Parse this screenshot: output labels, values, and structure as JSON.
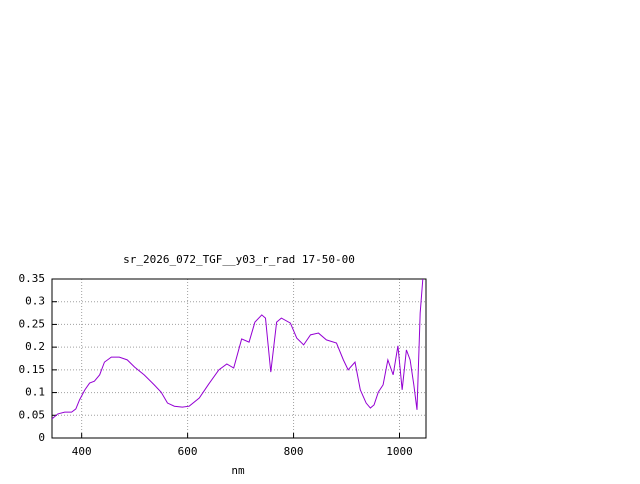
{
  "chart_data": {
    "type": "line",
    "title": "sr_2026_072_TGF__y03_r_rad 17-50-00",
    "xlabel": "nm",
    "xlim": [
      344,
      1050
    ],
    "ylim": [
      0,
      0.35
    ],
    "xticks": [
      400,
      600,
      800,
      1000
    ],
    "yticks": [
      0,
      0.05,
      0.1,
      0.15,
      0.2,
      0.25,
      0.3,
      0.35
    ],
    "grid": true,
    "series": [
      {
        "color": "#9400d3",
        "x": [
          344,
          355,
          368,
          381,
          389,
          396,
          406,
          415,
          424,
          434,
          443,
          456,
          471,
          486,
          500,
          518,
          537,
          550,
          562,
          575,
          590,
          603,
          622,
          640,
          659,
          674,
          687,
          702,
          716,
          727,
          740,
          747,
          757,
          768,
          777,
          794,
          806,
          819,
          832,
          847,
          862,
          881,
          894,
          903,
          916,
          926,
          937,
          945,
          952,
          960,
          969,
          978,
          988,
          997,
          1005,
          1013,
          1020,
          1027,
          1033,
          1039,
          1044
        ],
        "values": [
          0.042,
          0.053,
          0.057,
          0.057,
          0.064,
          0.084,
          0.106,
          0.121,
          0.125,
          0.139,
          0.167,
          0.178,
          0.178,
          0.172,
          0.156,
          0.139,
          0.117,
          0.101,
          0.077,
          0.07,
          0.068,
          0.07,
          0.088,
          0.119,
          0.15,
          0.163,
          0.154,
          0.218,
          0.211,
          0.255,
          0.271,
          0.264,
          0.145,
          0.255,
          0.264,
          0.253,
          0.22,
          0.205,
          0.227,
          0.231,
          0.216,
          0.209,
          0.172,
          0.15,
          0.167,
          0.106,
          0.077,
          0.066,
          0.073,
          0.101,
          0.117,
          0.172,
          0.139,
          0.203,
          0.106,
          0.194,
          0.172,
          0.117,
          0.062,
          0.275,
          0.35
        ]
      }
    ]
  }
}
